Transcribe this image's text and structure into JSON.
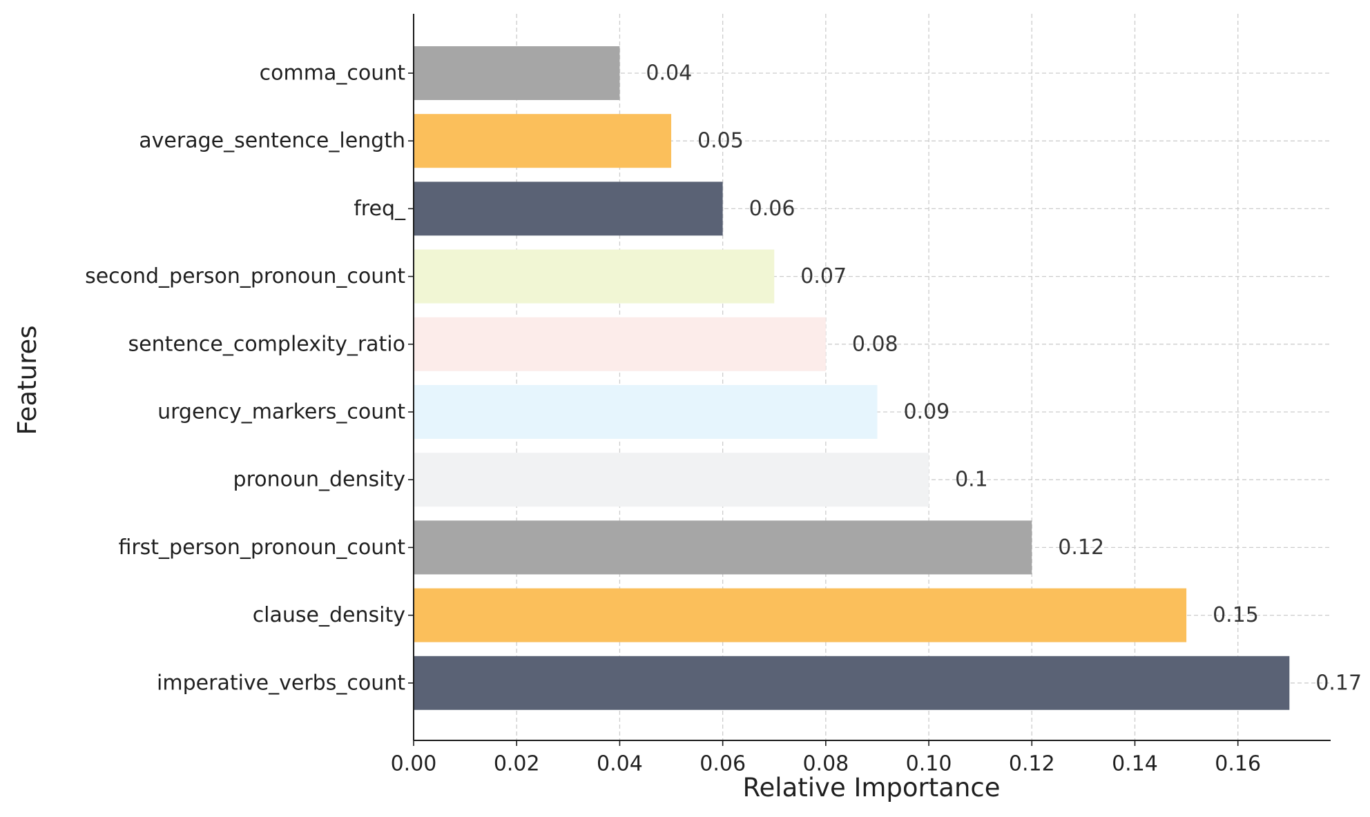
{
  "chart_data": {
    "type": "bar",
    "orientation": "horizontal",
    "title": "",
    "xlabel": "Relative Importance",
    "ylabel": "Features",
    "xlim": [
      0,
      0.178
    ],
    "x_ticks": [
      "0.00",
      "0.02",
      "0.04",
      "0.06",
      "0.08",
      "0.10",
      "0.12",
      "0.14",
      "0.16"
    ],
    "grid": true,
    "grid_style": "dashed",
    "legend": "none",
    "bars": [
      {
        "label": "comma_count",
        "value": 0.04,
        "value_label": "0.04",
        "color": "#a6a6a6"
      },
      {
        "label": "average_sentence_length",
        "value": 0.05,
        "value_label": "0.05",
        "color": "#fbbf5b"
      },
      {
        "label": "freq_",
        "value": 0.06,
        "value_label": "0.06",
        "color": "#5a6275"
      },
      {
        "label": "second_person_pronoun_count",
        "value": 0.07,
        "value_label": "0.07",
        "color": "#f1f6d4"
      },
      {
        "label": "sentence_complexity_ratio",
        "value": 0.08,
        "value_label": "0.08",
        "color": "#fcecea"
      },
      {
        "label": "urgency_markers_count",
        "value": 0.09,
        "value_label": "0.09",
        "color": "#e6f5fd"
      },
      {
        "label": "pronoun_density",
        "value": 0.1,
        "value_label": "0.1",
        "color": "#f1f2f3"
      },
      {
        "label": "first_person_pronoun_count",
        "value": 0.12,
        "value_label": "0.12",
        "color": "#a6a6a6"
      },
      {
        "label": "clause_density",
        "value": 0.15,
        "value_label": "0.15",
        "color": "#fbbf5b"
      },
      {
        "label": "imperative_verbs_count",
        "value": 0.17,
        "value_label": "0.17",
        "color": "#5a6275"
      }
    ],
    "colors": {
      "axis": "#1a1a1a",
      "grid": "#cccccc"
    }
  }
}
